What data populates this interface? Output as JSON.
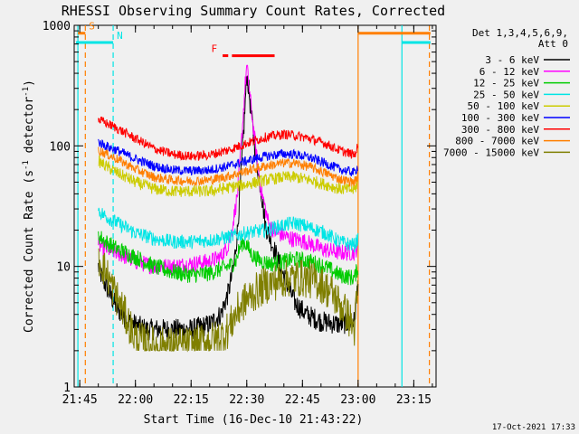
{
  "chart_data": {
    "type": "line",
    "title": "RHESSI Observing Summary Count Rates, Corrected",
    "xlabel": "Start Time (16-Dec-10 21:43:22)",
    "ylabel_main": "Corrected Count Rate (s",
    "ylabel_sup1": "-1",
    "ylabel_mid": " detector",
    "ylabel_sup2": "-1",
    "ylabel_end": ")",
    "y_scale": "log",
    "ylim": [
      1,
      1000
    ],
    "xlim_minutes": [
      -1.5,
      96
    ],
    "x_ticks": [
      {
        "label": "21:45",
        "min": 0
      },
      {
        "label": "22:00",
        "min": 15
      },
      {
        "label": "22:15",
        "min": 30
      },
      {
        "label": "22:30",
        "min": 45
      },
      {
        "label": "22:45",
        "min": 60
      },
      {
        "label": "23:00",
        "min": 75
      },
      {
        "label": "23:15",
        "min": 90
      }
    ],
    "y_ticks": [
      {
        "label": "1",
        "value": 1
      },
      {
        "label": "10",
        "value": 10
      },
      {
        "label": "100",
        "value": 100
      },
      {
        "label": "1000",
        "value": 1000
      }
    ],
    "legend": {
      "position": "right",
      "header1": "Det 1,3,4,5,6,9,",
      "header2": "Att 0",
      "entries": [
        {
          "label": "3 - 6 keV",
          "color": "#000000"
        },
        {
          "label": "6 - 12 keV",
          "color": "#ff00ff"
        },
        {
          "label": "12 - 25 keV",
          "color": "#00cc00"
        },
        {
          "label": "25 - 50 keV",
          "color": "#00e5e5"
        },
        {
          "label": "50 - 100 keV",
          "color": "#cccc00"
        },
        {
          "label": "100 - 300 keV",
          "color": "#0000ff"
        },
        {
          "label": "300 - 800 keV",
          "color": "#ff0000"
        },
        {
          "label": "800 - 7000 keV",
          "color": "#ff7f00"
        },
        {
          "label": "7000 - 15000 keV",
          "color": "#7f7f00"
        }
      ]
    },
    "flags": [
      {
        "label": "S",
        "color": "#ff7f00",
        "level": 860,
        "start_min": -0.5,
        "end_min": 1.5
      },
      {
        "label": "N",
        "color": "#00e5e5",
        "level": 720,
        "start_min": -1.0,
        "end_min": 9.0
      },
      {
        "label": "F",
        "color": "#ff0000",
        "level": 560,
        "start_min": 41.0,
        "end_min": 52.5,
        "segment2_start": 38.5,
        "segment2_end": 40.0
      }
    ],
    "vertical_markers": [
      {
        "min": -0.5,
        "color": "#00e5e5",
        "style": "solid"
      },
      {
        "min": 1.5,
        "color": "#ff7f00",
        "style": "dashed"
      },
      {
        "min": 9.0,
        "color": "#00e5e5",
        "style": "dashed"
      },
      {
        "min": 75.0,
        "color": "#ff7f00",
        "style": "solid"
      },
      {
        "min": 86.8,
        "color": "#00e5e5",
        "style": "solid"
      },
      {
        "min": 94.2,
        "color": "#ff7f00",
        "style": "dashed"
      }
    ],
    "saa_bars": [
      {
        "color": "#ff7f00",
        "level": 860,
        "start_min": 75.0,
        "end_min": 94.5
      },
      {
        "color": "#00e5e5",
        "level": 720,
        "start_min": 86.8,
        "end_min": 94.5
      }
    ],
    "data_range_minutes": [
      5.0,
      75.0
    ],
    "series": [
      {
        "name": "3 - 6 keV",
        "color": "#000000",
        "points": [
          [
            5,
            10
          ],
          [
            6,
            8
          ],
          [
            8,
            6
          ],
          [
            10,
            4.5
          ],
          [
            13,
            3.5
          ],
          [
            18,
            3
          ],
          [
            25,
            3
          ],
          [
            30,
            3
          ],
          [
            35,
            3.3
          ],
          [
            38,
            4
          ],
          [
            40,
            6
          ],
          [
            41.5,
            10
          ],
          [
            42.5,
            20
          ],
          [
            43.5,
            60
          ],
          [
            44.5,
            200
          ],
          [
            45,
            400
          ],
          [
            45.5,
            300
          ],
          [
            46.5,
            150
          ],
          [
            47.5,
            80
          ],
          [
            49,
            40
          ],
          [
            50,
            22
          ],
          [
            52,
            15
          ],
          [
            54,
            10
          ],
          [
            56,
            7
          ],
          [
            58,
            5
          ],
          [
            61,
            4
          ],
          [
            65,
            3.5
          ],
          [
            70,
            3.3
          ],
          [
            74,
            3.5
          ],
          [
            75,
            8
          ]
        ],
        "noise": 0.09
      },
      {
        "name": "6 - 12 keV",
        "color": "#ff00ff",
        "points": [
          [
            5,
            15
          ],
          [
            7,
            14
          ],
          [
            10,
            13
          ],
          [
            15,
            11
          ],
          [
            20,
            10
          ],
          [
            25,
            10
          ],
          [
            30,
            10.5
          ],
          [
            35,
            11
          ],
          [
            38,
            12
          ],
          [
            40,
            15
          ],
          [
            41,
            20
          ],
          [
            42.5,
            40
          ],
          [
            43.5,
            100
          ],
          [
            44.5,
            300
          ],
          [
            45,
            460
          ],
          [
            45.5,
            330
          ],
          [
            46.5,
            170
          ],
          [
            47.5,
            90
          ],
          [
            48.5,
            50
          ],
          [
            50,
            30
          ],
          [
            51,
            22
          ],
          [
            53,
            19
          ],
          [
            57,
            17
          ],
          [
            61,
            16
          ],
          [
            65,
            14
          ],
          [
            70,
            13
          ],
          [
            74,
            13
          ],
          [
            75,
            15
          ]
        ],
        "noise": 0.07
      },
      {
        "name": "12 - 25 keV",
        "color": "#00cc00",
        "points": [
          [
            5,
            18
          ],
          [
            7,
            16
          ],
          [
            10,
            14
          ],
          [
            15,
            12
          ],
          [
            20,
            10
          ],
          [
            25,
            9
          ],
          [
            30,
            8.5
          ],
          [
            35,
            8.8
          ],
          [
            38,
            9.5
          ],
          [
            40,
            10
          ],
          [
            42,
            11
          ],
          [
            43,
            14
          ],
          [
            44,
            16
          ],
          [
            45,
            15
          ],
          [
            46,
            13
          ],
          [
            47,
            12
          ],
          [
            49,
            11
          ],
          [
            52,
            10.5
          ],
          [
            55,
            11
          ],
          [
            58,
            11.5
          ],
          [
            62,
            11
          ],
          [
            66,
            10
          ],
          [
            70,
            8.5
          ],
          [
            74,
            8
          ],
          [
            75,
            10
          ]
        ],
        "noise": 0.07
      },
      {
        "name": "25 - 50 keV",
        "color": "#00e5e5",
        "points": [
          [
            5,
            29
          ],
          [
            7,
            26
          ],
          [
            10,
            23
          ],
          [
            15,
            19
          ],
          [
            20,
            17
          ],
          [
            25,
            16
          ],
          [
            30,
            16
          ],
          [
            35,
            16.5
          ],
          [
            40,
            17.5
          ],
          [
            45,
            19
          ],
          [
            50,
            20
          ],
          [
            55,
            22
          ],
          [
            58,
            23
          ],
          [
            62,
            21
          ],
          [
            66,
            19
          ],
          [
            70,
            16
          ],
          [
            74,
            15
          ],
          [
            75,
            17
          ]
        ],
        "noise": 0.06
      },
      {
        "name": "50 - 100 keV",
        "color": "#cccc00",
        "points": [
          [
            5,
            75
          ],
          [
            7,
            68
          ],
          [
            10,
            60
          ],
          [
            15,
            50
          ],
          [
            20,
            44
          ],
          [
            25,
            42
          ],
          [
            30,
            42
          ],
          [
            35,
            42
          ],
          [
            40,
            45
          ],
          [
            45,
            48
          ],
          [
            50,
            52
          ],
          [
            55,
            55
          ],
          [
            58,
            55
          ],
          [
            62,
            52
          ],
          [
            66,
            48
          ],
          [
            70,
            44
          ],
          [
            74,
            43
          ],
          [
            75,
            50
          ]
        ],
        "noise": 0.05
      },
      {
        "name": "100 - 300 keV",
        "color": "#0000ff",
        "points": [
          [
            5,
            108
          ],
          [
            7,
            100
          ],
          [
            10,
            92
          ],
          [
            15,
            78
          ],
          [
            20,
            68
          ],
          [
            25,
            63
          ],
          [
            30,
            62
          ],
          [
            35,
            63
          ],
          [
            40,
            68
          ],
          [
            45,
            75
          ],
          [
            50,
            82
          ],
          [
            55,
            86
          ],
          [
            58,
            85
          ],
          [
            62,
            80
          ],
          [
            66,
            72
          ],
          [
            70,
            64
          ],
          [
            74,
            60
          ],
          [
            75,
            68
          ]
        ],
        "noise": 0.04
      },
      {
        "name": "300 - 800 keV",
        "color": "#ff0000",
        "points": [
          [
            5,
            165
          ],
          [
            7,
            155
          ],
          [
            10,
            140
          ],
          [
            15,
            115
          ],
          [
            20,
            95
          ],
          [
            25,
            85
          ],
          [
            30,
            82
          ],
          [
            35,
            84
          ],
          [
            40,
            92
          ],
          [
            45,
            105
          ],
          [
            50,
            118
          ],
          [
            55,
            125
          ],
          [
            58,
            122
          ],
          [
            62,
            115
          ],
          [
            66,
            105
          ],
          [
            70,
            92
          ],
          [
            74,
            84
          ],
          [
            75,
            100
          ]
        ],
        "noise": 0.04
      },
      {
        "name": "800 - 7000 keV",
        "color": "#ff7f00",
        "points": [
          [
            5,
            92
          ],
          [
            7,
            86
          ],
          [
            10,
            78
          ],
          [
            15,
            64
          ],
          [
            20,
            55
          ],
          [
            25,
            52
          ],
          [
            30,
            51
          ],
          [
            35,
            52
          ],
          [
            40,
            56
          ],
          [
            45,
            62
          ],
          [
            50,
            68
          ],
          [
            55,
            72
          ],
          [
            58,
            72
          ],
          [
            62,
            67
          ],
          [
            66,
            60
          ],
          [
            70,
            53
          ],
          [
            74,
            50
          ],
          [
            75,
            56
          ]
        ],
        "noise": 0.04
      },
      {
        "name": "7000 - 15000 keV",
        "color": "#7f7f00",
        "points": [
          [
            5,
            12
          ],
          [
            7,
            9
          ],
          [
            10,
            5.5
          ],
          [
            13,
            3.5
          ],
          [
            15,
            2.5
          ],
          [
            20,
            2.2
          ],
          [
            25,
            2.2
          ],
          [
            30,
            2.2
          ],
          [
            35,
            2.4
          ],
          [
            38,
            2.6
          ],
          [
            40,
            3
          ],
          [
            42,
            4
          ],
          [
            44,
            5
          ],
          [
            47,
            6
          ],
          [
            50,
            7
          ],
          [
            53,
            7.5
          ],
          [
            56,
            8
          ],
          [
            60,
            8
          ],
          [
            64,
            7.5
          ],
          [
            68,
            6
          ],
          [
            72,
            4
          ],
          [
            74,
            3
          ],
          [
            75,
            7
          ]
        ],
        "noise": 0.16,
        "floor": 2.0
      }
    ]
  },
  "footer": {
    "timestamp": "17-Oct-2021 17:33"
  }
}
